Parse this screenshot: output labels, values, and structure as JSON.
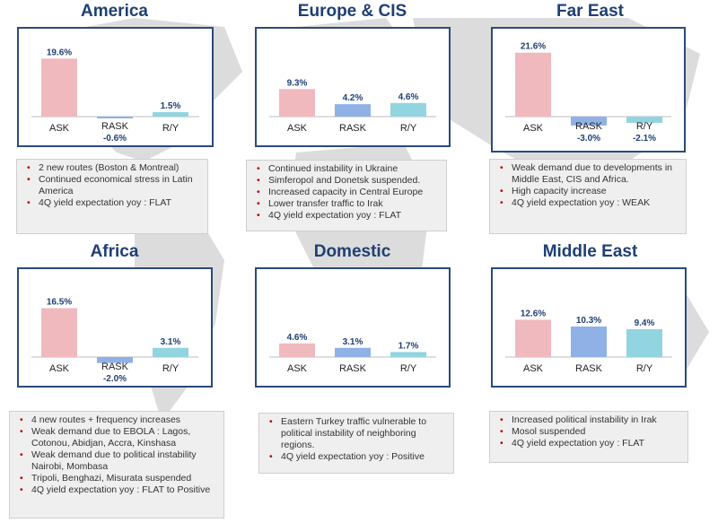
{
  "panels": [
    {
      "id": "america",
      "title": "America",
      "chart_data": {
        "type": "bar",
        "categories": [
          "ASK",
          "RASK",
          "R/Y"
        ],
        "values": [
          19.6,
          -0.6,
          1.5
        ],
        "value_labels": [
          "19.6%",
          "-0.6%",
          "1.5%"
        ]
      },
      "notes": [
        "2 new routes  (Boston & Montreal)",
        "Continued economical stress in Latin America",
        "4Q yield expectation yoy : FLAT"
      ]
    },
    {
      "id": "europe",
      "title": "Europe & CIS",
      "chart_data": {
        "type": "bar",
        "categories": [
          "ASK",
          "RASK",
          "R/Y"
        ],
        "values": [
          9.3,
          4.2,
          4.6
        ],
        "value_labels": [
          "9.3%",
          "4.2%",
          "4.6%"
        ]
      },
      "notes": [
        "Continued instability in Ukraine",
        "Simferopol and Donetsk suspended.",
        "Increased capacity in Central Europe",
        "Lower transfer traffic to Irak",
        "4Q yield expectation yoy : FLAT"
      ]
    },
    {
      "id": "fareast",
      "title": "Far East",
      "chart_data": {
        "type": "bar",
        "categories": [
          "ASK",
          "RASK",
          "R/Y"
        ],
        "values": [
          21.6,
          -3.0,
          -2.1
        ],
        "value_labels": [
          "21.6%",
          "-3.0%",
          "-2.1%"
        ]
      },
      "notes": [
        "Weak demand  due to developments in Middle East, CIS and Africa.",
        "High capacity increase",
        "4Q yield expectation yoy : WEAK"
      ]
    },
    {
      "id": "africa",
      "title": "Africa",
      "chart_data": {
        "type": "bar",
        "categories": [
          "ASK",
          "RASK",
          "R/Y"
        ],
        "values": [
          16.5,
          -2.0,
          3.1
        ],
        "value_labels": [
          "16.5%",
          "-2.0%",
          "3.1%"
        ]
      },
      "notes": [
        "4 new routes + frequency increases",
        "Weak demand  due to EBOLA : Lagos, Cotonou, Abidjan, Accra, Kinshasa",
        "Weak demand due to political instability Nairobi, Mombasa",
        "Tripoli, Benghazi, Misurata suspended",
        "4Q yield expectation yoy : FLAT to Positive"
      ]
    },
    {
      "id": "domestic",
      "title": "Domestic",
      "chart_data": {
        "type": "bar",
        "categories": [
          "ASK",
          "RASK",
          "R/Y"
        ],
        "values": [
          4.6,
          3.1,
          1.7
        ],
        "value_labels": [
          "4.6%",
          "3.1%",
          "1.7%"
        ]
      },
      "notes": [
        "Eastern Turkey traffic vulnerable to political instability of neighboring regions.",
        "4Q yield expectation yoy : Positive"
      ]
    },
    {
      "id": "middleeast",
      "title": "Middle East",
      "chart_data": {
        "type": "bar",
        "categories": [
          "ASK",
          "RASK",
          "R/Y"
        ],
        "values": [
          12.6,
          10.3,
          9.4
        ],
        "value_labels": [
          "12.6%",
          "10.3%",
          "9.4%"
        ]
      },
      "notes": [
        "Increased political instability in Irak",
        "Mosol suspended",
        "4Q yield expectation yoy : FLAT"
      ]
    }
  ],
  "colors": {
    "ASK": "#f0b9be",
    "RASK": "#8fb1e6",
    "R/Y": "#92d4e0",
    "value_label": "#1f3f73",
    "title": "#1f3f73",
    "frame": "#2b4a7a",
    "bullet": "#c00000"
  }
}
